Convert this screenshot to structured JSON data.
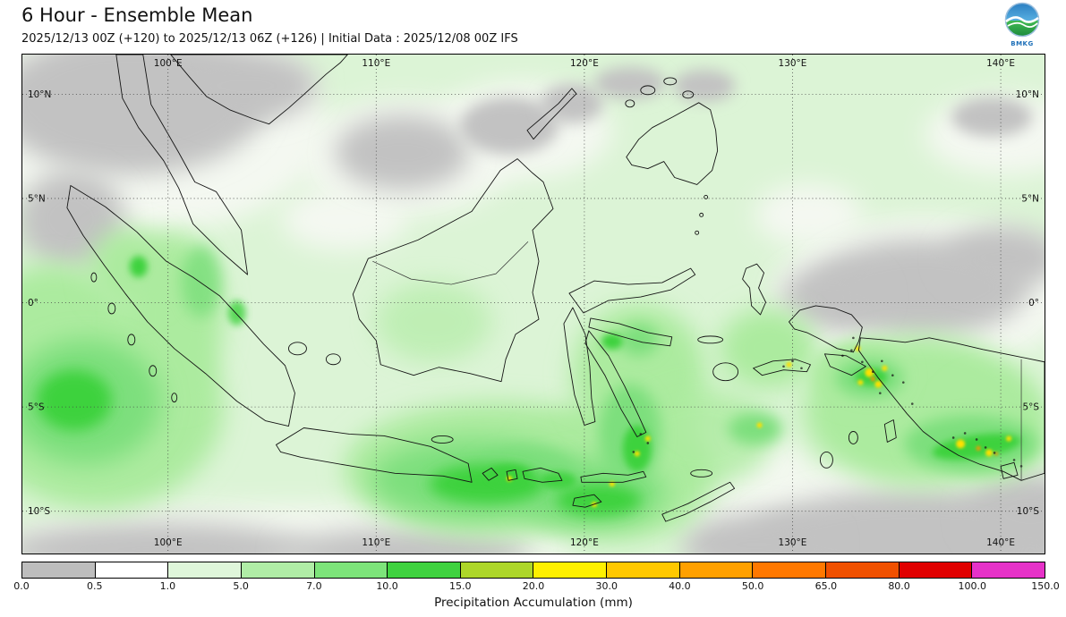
{
  "header": {
    "title": "6 Hour - Ensemble Mean",
    "subtitle": "2025/12/13 00Z (+120) to 2025/12/13 06Z (+126) | Initial Data : 2025/12/08 00Z IFS",
    "logo_text": "BMKG"
  },
  "map": {
    "lon_labels": [
      "100°E",
      "110°E",
      "120°E",
      "130°E",
      "140°E"
    ],
    "lat_labels": [
      "10°N",
      "5°N",
      "0°",
      "5°S",
      "10°S"
    ]
  },
  "colorbar": {
    "label": "Precipitation Accumulation (mm)",
    "tick_labels": [
      "0.0",
      "0.5",
      "1.0",
      "5.0",
      "7.0",
      "10.0",
      "15.0",
      "20.0",
      "30.0",
      "40.0",
      "50.0",
      "65.0",
      "80.0",
      "100.0",
      "150.0"
    ],
    "segment_colors": [
      "#bdbdbd",
      "#ffffff",
      "#dff6da",
      "#b0eda6",
      "#7de47a",
      "#3fd23f",
      "#add629",
      "#fef000",
      "#ffc800",
      "#ffa000",
      "#ff7800",
      "#f05000",
      "#e00000",
      "#e632c8"
    ]
  },
  "chart_data": {
    "type": "heatmap",
    "title": "6 Hour - Ensemble Mean",
    "subtitle": "2025/12/13 00Z (+120) to 2025/12/13 06Z (+126) | Initial Data : 2025/12/08 00Z IFS",
    "variable": "Precipitation Accumulation (mm)",
    "x_ticks": [
      "100°E",
      "110°E",
      "120°E",
      "130°E",
      "140°E"
    ],
    "y_ticks": [
      "10°N",
      "5°N",
      "0°",
      "5°S",
      "10°S"
    ],
    "color_breaks_mm": [
      0.0,
      0.5,
      1.0,
      5.0,
      7.0,
      10.0,
      15.0,
      20.0,
      30.0,
      40.0,
      50.0,
      65.0,
      80.0,
      100.0,
      150.0
    ],
    "colors": [
      "#bdbdbd",
      "#ffffff",
      "#dff6da",
      "#b0eda6",
      "#7de47a",
      "#3fd23f",
      "#add629",
      "#fef000",
      "#ffc800",
      "#ffa000",
      "#ff7800",
      "#f05000",
      "#e00000",
      "#e632c8"
    ],
    "legend_position": "bottom"
  }
}
